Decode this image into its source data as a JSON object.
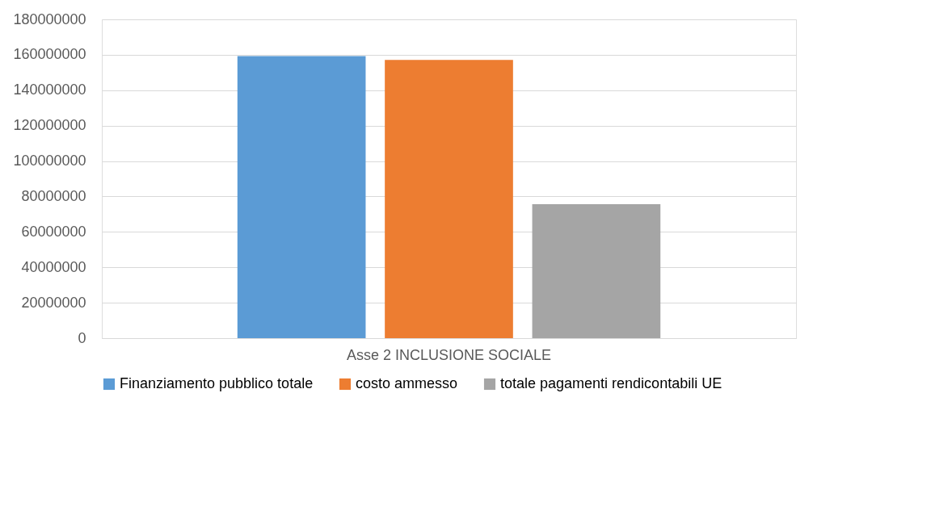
{
  "chart_data": {
    "type": "bar",
    "categories": [
      "Asse 2 INCLUSIONE SOCIALE"
    ],
    "series": [
      {
        "name": "Finanziamento pubblico totale",
        "color": "#5b9bd5",
        "values": [
          159300000
        ]
      },
      {
        "name": "costo ammesso",
        "color": "#ed7d31",
        "values": [
          157100000
        ]
      },
      {
        "name": "totale pagamenti rendicontabili UE",
        "color": "#a5a5a5",
        "values": [
          75700000
        ]
      }
    ],
    "ylim": [
      0,
      180000000
    ],
    "yticks": [
      0,
      20000000,
      40000000,
      60000000,
      80000000,
      100000000,
      120000000,
      140000000,
      160000000,
      180000000
    ],
    "grid": "y",
    "legend": "bottom"
  }
}
